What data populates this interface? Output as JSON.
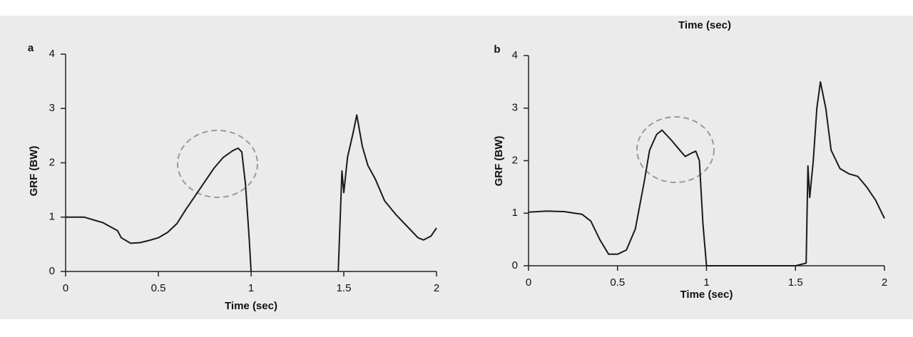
{
  "caption": "Time (sec)",
  "chart_data": [
    {
      "type": "line",
      "panel_label": "a",
      "xlabel": "Time (sec)",
      "ylabel": "GRF (BW)",
      "xlim": [
        0,
        2
      ],
      "ylim": [
        0,
        4
      ],
      "xticks": [
        0,
        0.5,
        1,
        1.5,
        2
      ],
      "yticks": [
        0,
        1,
        2,
        3,
        4
      ],
      "grid": false,
      "x": [
        0,
        0.1,
        0.2,
        0.28,
        0.3,
        0.35,
        0.4,
        0.45,
        0.5,
        0.55,
        0.6,
        0.65,
        0.7,
        0.75,
        0.8,
        0.85,
        0.9,
        0.93,
        0.95,
        0.97,
        0.99,
        1.0,
        1.2,
        1.47,
        1.49,
        1.5,
        1.52,
        1.55,
        1.57,
        1.6,
        1.63,
        1.67,
        1.72,
        1.78,
        1.85,
        1.9,
        1.93,
        1.97,
        2.0
      ],
      "series": [
        {
          "color": "#1a1a1a",
          "values": [
            1.0,
            1.0,
            0.9,
            0.75,
            0.62,
            0.52,
            0.53,
            0.57,
            0.62,
            0.72,
            0.88,
            1.15,
            1.4,
            1.65,
            1.9,
            2.1,
            2.22,
            2.27,
            2.2,
            1.6,
            0.6,
            0,
            null,
            0,
            1.85,
            1.45,
            2.1,
            2.55,
            2.88,
            2.3,
            1.95,
            1.7,
            1.3,
            1.05,
            0.8,
            0.62,
            0.58,
            0.65,
            0.8
          ]
        }
      ]
    },
    {
      "type": "line",
      "panel_label": "b",
      "xlabel": "Time (sec)",
      "ylabel": "GRF (BW)",
      "xlim": [
        0,
        2
      ],
      "ylim": [
        0,
        4
      ],
      "xticks": [
        0,
        0.5,
        1,
        1.5,
        2
      ],
      "yticks": [
        0,
        1,
        2,
        3,
        4
      ],
      "grid": false,
      "x": [
        0,
        0.1,
        0.2,
        0.3,
        0.35,
        0.4,
        0.45,
        0.5,
        0.55,
        0.6,
        0.65,
        0.68,
        0.72,
        0.75,
        0.8,
        0.85,
        0.88,
        0.92,
        0.94,
        0.96,
        0.98,
        1.0,
        1.5,
        1.56,
        1.57,
        1.58,
        1.6,
        1.62,
        1.64,
        1.67,
        1.7,
        1.75,
        1.8,
        1.85,
        1.9,
        1.95,
        2.0
      ],
      "series": [
        {
          "color": "#1a1a1a",
          "values": [
            1.02,
            1.04,
            1.03,
            0.98,
            0.85,
            0.5,
            0.22,
            0.22,
            0.3,
            0.7,
            1.6,
            2.2,
            2.5,
            2.58,
            2.4,
            2.2,
            2.08,
            2.15,
            2.18,
            2.0,
            0.8,
            0,
            0,
            0.05,
            1.9,
            1.3,
            2.0,
            3.0,
            3.5,
            3.0,
            2.2,
            1.85,
            1.75,
            1.7,
            1.5,
            1.25,
            0.9
          ]
        }
      ]
    }
  ]
}
